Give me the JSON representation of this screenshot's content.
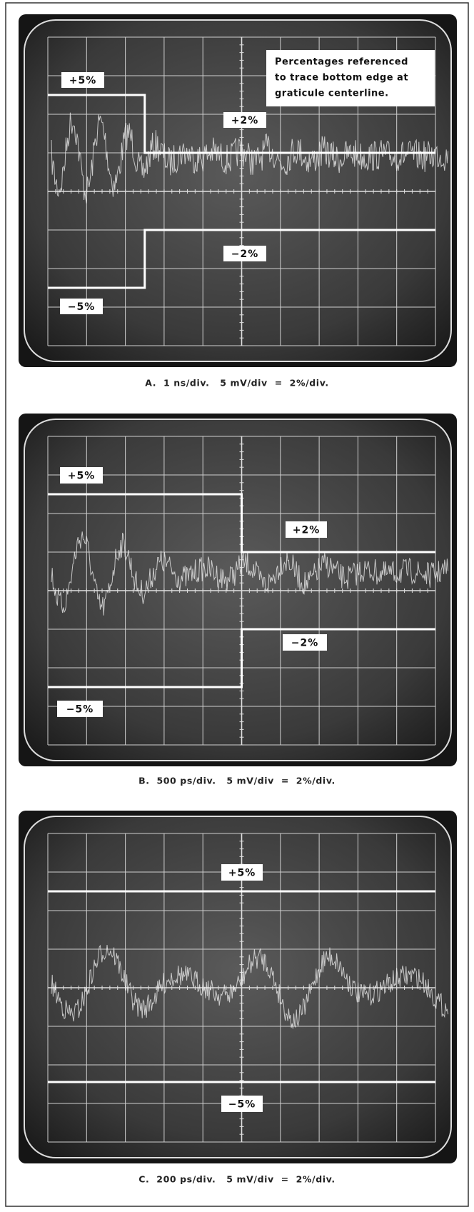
{
  "panels": [
    {
      "annotation": [
        "Percentages referenced",
        "to trace bottom edge at",
        "graticule centerline."
      ],
      "markers": [
        "+5%",
        "+2%",
        "−2%",
        "−5%"
      ],
      "caption": "A.  1 ns/div.   5 mV/div  =  2%/div."
    },
    {
      "markers": [
        "+5%",
        "+2%",
        "−2%",
        "−5%"
      ],
      "caption": "B.  500 ps/div.   5 mV/div  =  2%/div."
    },
    {
      "markers": [
        "+5%",
        "−5%"
      ],
      "caption": "C.  200 ps/div.   5 mV/div  =  2%/div."
    }
  ]
}
